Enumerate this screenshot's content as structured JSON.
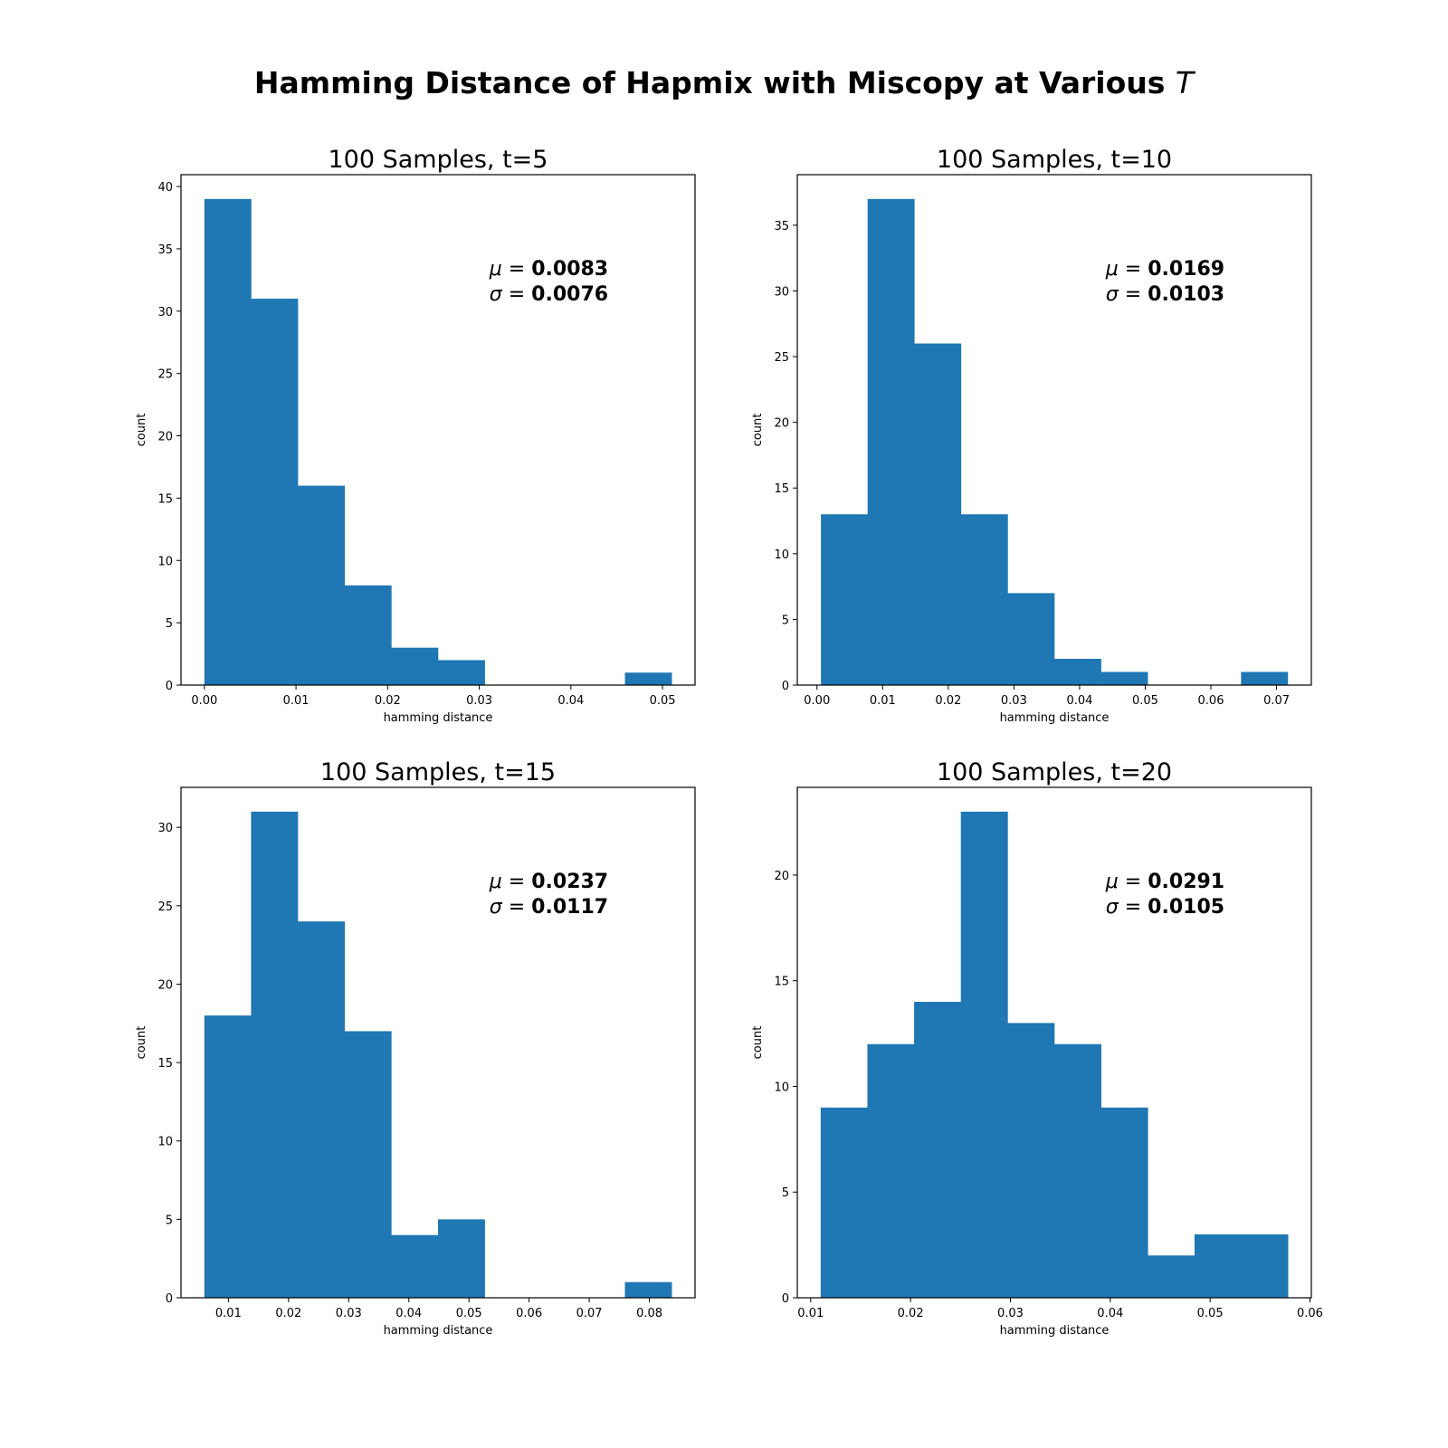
{
  "figure": {
    "title": "Hamming Distance of Hapmix with Miscopy at Various",
    "title_symbol": "T",
    "bar_color": "#1f77b4"
  },
  "chart_data": [
    {
      "type": "bar",
      "title": "100 Samples, t=5",
      "xlabel": "hamming distance",
      "ylabel": "count",
      "bin_edges": [
        0.0,
        0.0051,
        0.0102,
        0.0153,
        0.0204,
        0.0255,
        0.0306,
        0.0357,
        0.0408,
        0.0459,
        0.051
      ],
      "values": [
        39,
        31,
        16,
        8,
        3,
        2,
        0,
        0,
        0,
        1
      ],
      "xlim": [
        -0.00255,
        0.05355
      ],
      "ylim": [
        0,
        40.95
      ],
      "xticks": [
        0.0,
        0.01,
        0.02,
        0.03,
        0.04,
        0.05
      ],
      "xtick_labels": [
        "0.00",
        "0.01",
        "0.02",
        "0.03",
        "0.04",
        "0.05"
      ],
      "yticks": [
        0,
        5,
        10,
        15,
        20,
        25,
        30,
        35,
        40
      ],
      "yticklabels": [
        "0",
        "5",
        "10",
        "15",
        "20",
        "25",
        "30",
        "35",
        "40"
      ],
      "stats": {
        "mu_symbol": "μ",
        "mu": "0.0083",
        "sigma_symbol": "σ",
        "sigma": "0.0076"
      },
      "grid": false
    },
    {
      "type": "bar",
      "title": "100 Samples, t=10",
      "xlabel": "hamming distance",
      "ylabel": "count",
      "bin_edges": [
        0.0006,
        0.00771,
        0.01482,
        0.02193,
        0.02904,
        0.03615,
        0.04326,
        0.05037,
        0.05748,
        0.06459,
        0.0717
      ],
      "values": [
        13,
        37,
        26,
        13,
        7,
        2,
        1,
        0,
        0,
        1
      ],
      "xlim": [
        -0.003,
        0.0753
      ],
      "ylim": [
        0,
        38.85
      ],
      "xticks": [
        0.0,
        0.01,
        0.02,
        0.03,
        0.04,
        0.05,
        0.06,
        0.07
      ],
      "xtick_labels": [
        "0.00",
        "0.01",
        "0.02",
        "0.03",
        "0.04",
        "0.05",
        "0.06",
        "0.07"
      ],
      "yticks": [
        0,
        5,
        10,
        15,
        20,
        25,
        30,
        35
      ],
      "yticklabels": [
        "0",
        "5",
        "10",
        "15",
        "20",
        "25",
        "30",
        "35"
      ],
      "stats": {
        "mu_symbol": "μ",
        "mu": "0.0169",
        "sigma_symbol": "σ",
        "sigma": "0.0103"
      },
      "grid": false
    },
    {
      "type": "bar",
      "title": "100 Samples, t=15",
      "xlabel": "hamming distance",
      "ylabel": "count",
      "bin_edges": [
        0.006,
        0.01377,
        0.02154,
        0.02931,
        0.03708,
        0.04485,
        0.05262,
        0.06039,
        0.06816,
        0.07593,
        0.0837
      ],
      "values": [
        18,
        31,
        24,
        17,
        4,
        5,
        0,
        0,
        0,
        1
      ],
      "xlim": [
        0.00212,
        0.08759
      ],
      "ylim": [
        0,
        32.55
      ],
      "xticks": [
        0.01,
        0.02,
        0.03,
        0.04,
        0.05,
        0.06,
        0.07,
        0.08
      ],
      "xtick_labels": [
        "0.01",
        "0.02",
        "0.03",
        "0.04",
        "0.05",
        "0.06",
        "0.07",
        "0.08"
      ],
      "yticks": [
        0,
        5,
        10,
        15,
        20,
        25,
        30
      ],
      "yticklabels": [
        "0",
        "5",
        "10",
        "15",
        "20",
        "25",
        "30"
      ],
      "stats": {
        "mu_symbol": "μ",
        "mu": "0.0237",
        "sigma_symbol": "σ",
        "sigma": "0.0117"
      },
      "grid": false
    },
    {
      "type": "bar",
      "title": "100 Samples, t=20",
      "xlabel": "hamming distance",
      "ylabel": "count",
      "bin_edges": [
        0.011,
        0.01568,
        0.02036,
        0.02504,
        0.02972,
        0.0344,
        0.03908,
        0.04376,
        0.04844,
        0.05312,
        0.0578
      ],
      "values": [
        9,
        12,
        14,
        23,
        13,
        12,
        9,
        2,
        3,
        3
      ],
      "xlim": [
        0.00866,
        0.06014
      ],
      "ylim": [
        0,
        24.15
      ],
      "xticks": [
        0.01,
        0.02,
        0.03,
        0.04,
        0.05,
        0.06
      ],
      "xtick_labels": [
        "0.01",
        "0.02",
        "0.03",
        "0.04",
        "0.05",
        "0.06"
      ],
      "yticks": [
        0,
        5,
        10,
        15,
        20
      ],
      "yticklabels": [
        "0",
        "5",
        "10",
        "15",
        "20"
      ],
      "stats": {
        "mu_symbol": "μ",
        "mu": "0.0291",
        "sigma_symbol": "σ",
        "sigma": "0.0105"
      },
      "grid": false
    }
  ]
}
